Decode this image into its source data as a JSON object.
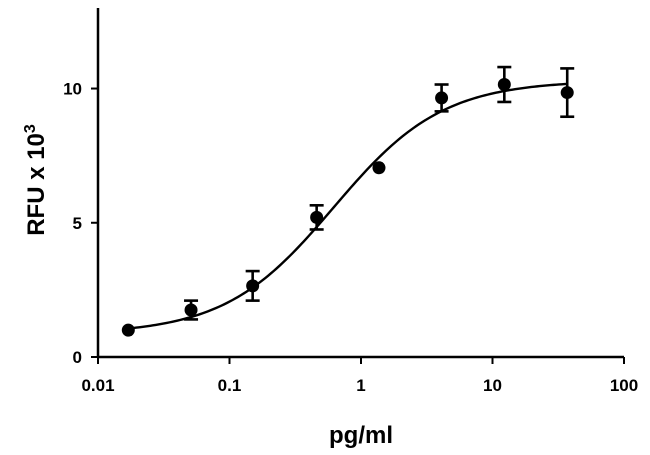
{
  "chart_data": {
    "type": "scatter",
    "title": "",
    "xlabel": "pg/ml",
    "ylabel_main": "RFU x 10",
    "ylabel_exponent": "3",
    "x_scale": "log",
    "xlim": [
      0.01,
      100
    ],
    "ylim": [
      0,
      13
    ],
    "x_ticks": [
      0.01,
      0.1,
      1,
      10,
      100
    ],
    "x_tick_labels": [
      "0.01",
      "0.1",
      "1",
      "10",
      "100"
    ],
    "y_ticks": [
      0,
      5,
      10
    ],
    "y_tick_labels": [
      "0",
      "5",
      "10"
    ],
    "grid": false,
    "legend": "none",
    "series": [
      {
        "x": [
          0.017,
          0.051,
          0.15,
          0.46,
          1.37,
          4.1,
          12.3,
          37
        ],
        "y": [
          1.0,
          1.75,
          2.65,
          5.2,
          7.05,
          9.65,
          10.15,
          9.85
        ],
        "err": [
          0,
          0.35,
          0.55,
          0.45,
          0,
          0.5,
          0.65,
          0.9
        ]
      }
    ],
    "fit": {
      "type": "4PL",
      "bottom": 0.85,
      "top": 10.3,
      "ec50": 0.62,
      "hill": 1.05
    },
    "colors": {
      "marks": "#000000",
      "background": "#ffffff"
    }
  }
}
